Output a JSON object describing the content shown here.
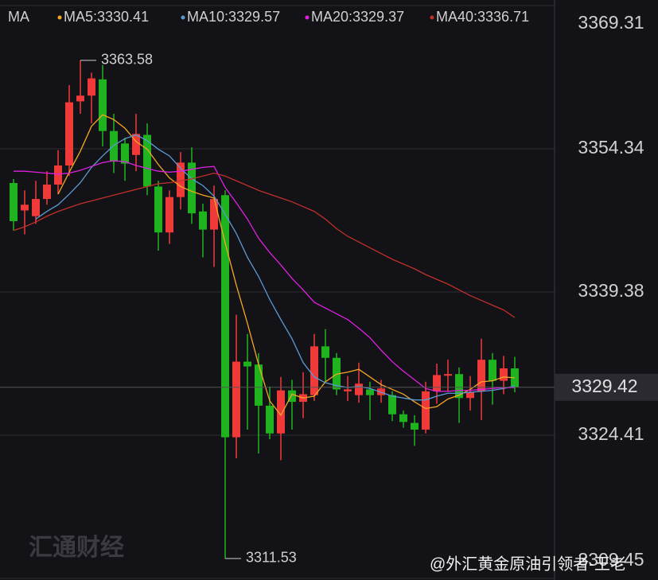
{
  "chart_data": {
    "type": "candlestick",
    "legend_title": "MA",
    "legend_labels": [
      "MA5:3330.41",
      "MA10:3329.57",
      "MA20:3329.37",
      "MA40:3336.71"
    ],
    "ylim": [
      3309.45,
      3369.31
    ],
    "yticks": [
      3369.31,
      3354.34,
      3339.38,
      3324.41,
      3309.45
    ],
    "grid": true,
    "up_color": "#f03a3a",
    "down_color": "#1fb31f",
    "current_price": 3329.42,
    "annotations": [
      {
        "text": "3363.58",
        "value": 3363.58,
        "index": 6
      },
      {
        "text": "3311.53",
        "value": 3311.53,
        "index": 19
      }
    ],
    "open": [
      3350.77,
      3347.9,
      3347.3,
      3349.1,
      3350.6,
      3352.6,
      3359.3,
      3359.9,
      3361.6,
      3356.2,
      3354.9,
      3353.7,
      3355.8,
      3350.4,
      3345.6,
      3349.3,
      3352.9,
      3347.8,
      3345.9,
      3349.5,
      3324.2,
      3332.1,
      3331.8,
      3327.5,
      3324.6,
      3329.1,
      3327.9,
      3328.6,
      3333.7,
      3332.5,
      3329.0,
      3328.6,
      3329.2,
      3328.6,
      3328.6,
      3326.6,
      3325.7,
      3325.0,
      3329.0,
      3330.7,
      3330.8,
      3328.3,
      3329.0,
      3332.3,
      3330.1,
      3331.4
    ],
    "high": [
      3351.19,
      3350.0,
      3351.0,
      3352.0,
      3354.2,
      3361.0,
      3363.58,
      3362.3,
      3363.1,
      3358.0,
      3355.5,
      3358.0,
      3357.0,
      3351.0,
      3350.0,
      3354.0,
      3354.5,
      3348.6,
      3350.5,
      3350.0,
      3337.0,
      3335.0,
      3333.0,
      3329.5,
      3330.5,
      3330.2,
      3331.0,
      3335.0,
      3335.5,
      3333.0,
      3330.6,
      3332.0,
      3330.0,
      3330.2,
      3329.0,
      3327.0,
      3326.5,
      3330.0,
      3331.9,
      3332.3,
      3331.5,
      3330.6,
      3334.5,
      3333.0,
      3332.7,
      3332.6
    ],
    "low": [
      3345.79,
      3345.4,
      3346.5,
      3348.5,
      3349.6,
      3351.5,
      3358.0,
      3357.0,
      3354.6,
      3351.8,
      3351.0,
      3352.0,
      3349.5,
      3343.7,
      3344.4,
      3348.0,
      3346.5,
      3343.0,
      3342.0,
      3311.53,
      3322.0,
      3325.0,
      3322.5,
      3324.0,
      3321.8,
      3325.0,
      3326.2,
      3328.0,
      3330.0,
      3328.6,
      3328.0,
      3327.8,
      3326.0,
      3327.8,
      3325.9,
      3325.2,
      3323.3,
      3324.6,
      3327.7,
      3329.0,
      3325.7,
      3327.0,
      3326.0,
      3327.6,
      3328.7,
      3328.9
    ],
    "close": [
      3346.78,
      3348.5,
      3349.1,
      3350.6,
      3352.6,
      3359.2,
      3359.9,
      3361.7,
      3356.2,
      3353.0,
      3352.8,
      3355.9,
      3350.4,
      3345.6,
      3349.3,
      3352.9,
      3347.6,
      3345.9,
      3349.1,
      3324.2,
      3332.1,
      3331.6,
      3327.5,
      3324.6,
      3329.1,
      3327.9,
      3328.7,
      3333.7,
      3332.5,
      3329.2,
      3329.2,
      3329.8,
      3328.6,
      3329.3,
      3326.6,
      3325.8,
      3325.0,
      3329.0,
      3330.7,
      3330.8,
      3328.3,
      3328.9,
      3332.3,
      3330.1,
      3331.4,
      3329.42
    ],
    "series": [
      {
        "name": "MA5",
        "color": "#f5a623",
        "values": [
          null,
          null,
          null,
          null,
          3349.6,
          3351.9,
          3354.1,
          3356.7,
          3357.9,
          3357.4,
          3356.5,
          3355.1,
          3354.3,
          3352.7,
          3351.3,
          3350.4,
          3349.9,
          3349.5,
          3349.2,
          3344.5,
          3340.1,
          3336.1,
          3331.8,
          3328.0,
          3326.5,
          3328.7,
          3328.3,
          3328.5,
          3330.0,
          3330.8,
          3331.0,
          3331.3,
          3330.5,
          3329.7,
          3329.2,
          3328.7,
          3327.9,
          3327.2,
          3327.4,
          3328.2,
          3328.6,
          3329.2,
          3330.0,
          3330.1,
          3330.5,
          3330.41
        ]
      },
      {
        "name": "MA10",
        "color": "#5b9bd5",
        "values": [
          null,
          null,
          3347.0,
          3347.8,
          3348.5,
          3349.6,
          3350.8,
          3352.4,
          3353.6,
          3354.7,
          3355.4,
          3355.8,
          3355.2,
          3354.3,
          3353.6,
          3352.3,
          3351.2,
          3350.5,
          3349.4,
          3347.5,
          3345.5,
          3343.0,
          3341.0,
          3338.6,
          3336.5,
          3334.5,
          3332.0,
          3330.5,
          3329.9,
          3329.6,
          3329.4,
          3329.5,
          3329.3,
          3328.9,
          3328.5,
          3328.3,
          3328.1,
          3328.1,
          3328.5,
          3328.8,
          3328.8,
          3328.9,
          3329.0,
          3329.1,
          3329.3,
          3329.57
        ]
      },
      {
        "name": "MA20",
        "color": "#e020e0",
        "values": [
          3352.0,
          3352.0,
          3351.9,
          3351.8,
          3351.7,
          3351.8,
          3352.1,
          3352.5,
          3352.9,
          3353.1,
          3353.0,
          3352.6,
          3352.3,
          3352.0,
          3351.9,
          3352.0,
          3352.2,
          3352.4,
          3352.5,
          3350.3,
          3348.7,
          3347.0,
          3345.0,
          3343.5,
          3342.2,
          3340.8,
          3339.6,
          3338.3,
          3337.7,
          3337.1,
          3336.5,
          3335.6,
          3334.6,
          3333.3,
          3332.1,
          3331.1,
          3330.2,
          3329.3,
          3329.0,
          3329.0,
          3329.1,
          3329.1,
          3329.2,
          3329.3,
          3329.4,
          3329.37
        ]
      },
      {
        "name": "MA40",
        "color": "#c0302a",
        "values": [
          3345.8,
          3346.2,
          3346.7,
          3347.3,
          3347.8,
          3348.2,
          3348.6,
          3348.9,
          3349.2,
          3349.5,
          3349.8,
          3350.1,
          3350.4,
          3350.7,
          3350.8,
          3351.0,
          3351.2,
          3351.5,
          3351.8,
          3351.5,
          3351.0,
          3350.5,
          3350.0,
          3349.6,
          3349.2,
          3348.8,
          3348.3,
          3347.8,
          3347.0,
          3346.0,
          3345.2,
          3344.6,
          3344.0,
          3343.4,
          3342.8,
          3342.3,
          3341.8,
          3341.2,
          3340.7,
          3340.2,
          3339.6,
          3339.0,
          3338.5,
          3338.0,
          3337.5,
          3336.71
        ]
      }
    ],
    "watermarks": [
      "汇通财经",
      "@外汇黄金原油引领者-王老"
    ]
  }
}
